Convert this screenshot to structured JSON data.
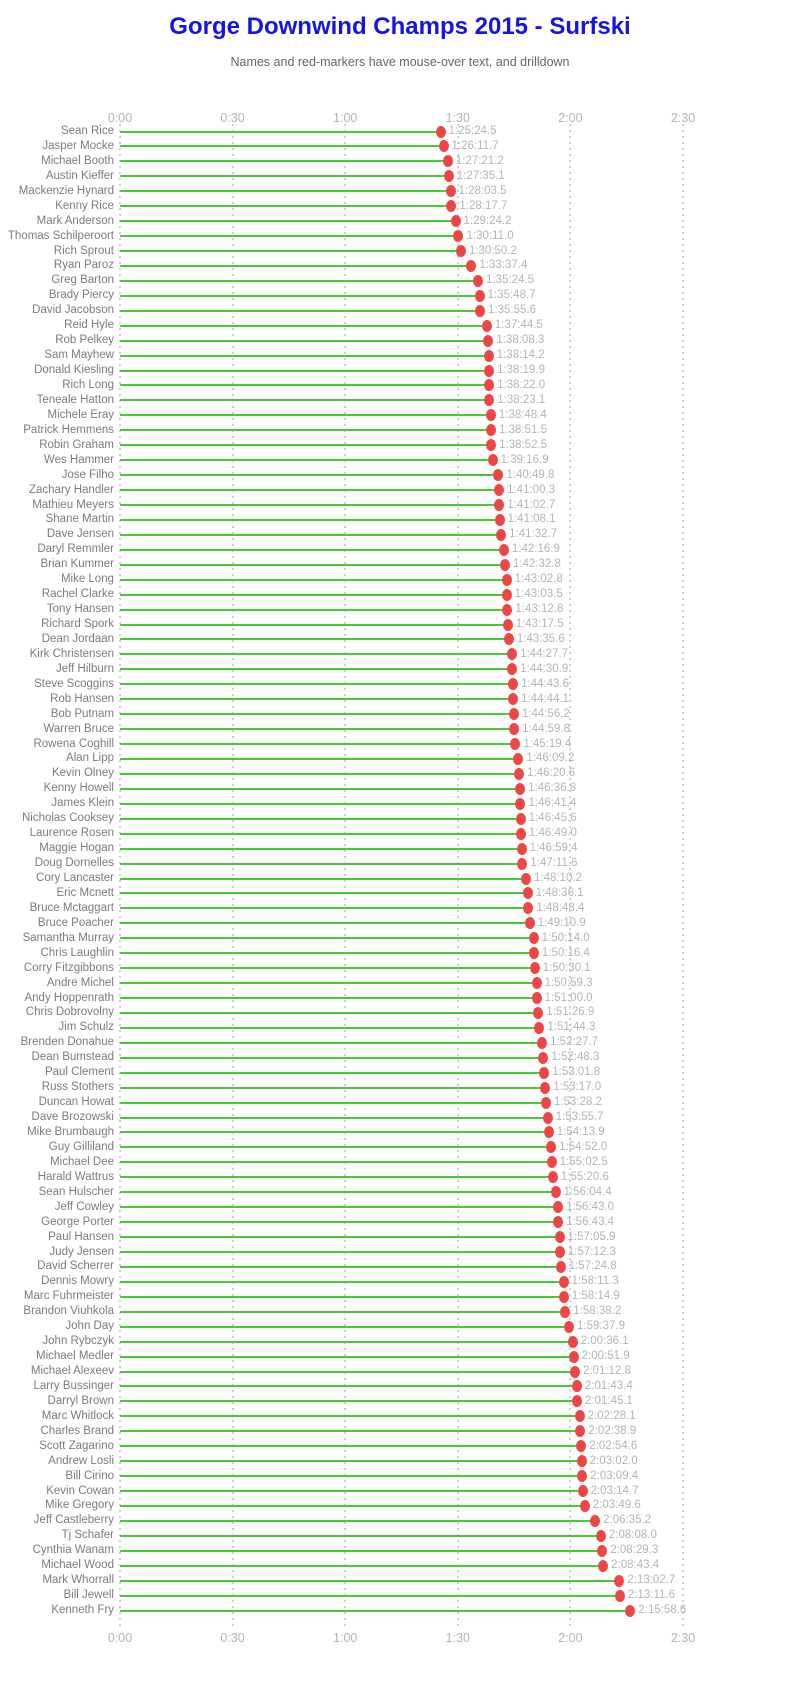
{
  "page": {
    "title": "Gorge Downwind Champs 2015 - Surfski",
    "subtitle": "Names and red-markers have mouse-over text, and drilldown"
  },
  "colors": {
    "title_text": "#1414e8",
    "subtitle_text": "#666666",
    "bar_line": "#4bc836",
    "marker": "#ee4545",
    "name_text": "#7b7b7b",
    "value_text": "#b4b4b4",
    "axis_text": "#b3b3b3",
    "gridline": "#cfcfcf"
  },
  "chart_data": {
    "type": "bar",
    "subtype": "horizontal-lollipop",
    "title": "Gorge Downwind Champs 2015 - Surfski",
    "subtitle": "Names and red-markers have mouse-over text, and drilldown",
    "xlabel": "",
    "ylabel": "",
    "legend": "none",
    "x_axis": {
      "ticks": [
        "0:00",
        "0:30",
        "1:00",
        "1:30",
        "2:00",
        "2:30"
      ],
      "range_minutes": [
        0,
        150
      ],
      "shown_on": "top and bottom",
      "gridlines": "dotted vertical"
    },
    "rows": [
      {
        "name": "Sean Rice",
        "time": "1:25:24.5"
      },
      {
        "name": "Jasper Mocke",
        "time": "1:26:11.7"
      },
      {
        "name": "Michael Booth",
        "time": "1:27:21.2"
      },
      {
        "name": "Austin Kieffer",
        "time": "1:27:35.1"
      },
      {
        "name": "Mackenzie Hynard",
        "time": "1:28:03.5"
      },
      {
        "name": "Kenny Rice",
        "time": "1:28:17.7"
      },
      {
        "name": "Mark Anderson",
        "time": "1:29:24.2"
      },
      {
        "name": "Thomas Schilperoort",
        "time": "1:30:11.0"
      },
      {
        "name": "Rich Sprout",
        "time": "1:30:50.2"
      },
      {
        "name": "Ryan Paroz",
        "time": "1:33:37.4"
      },
      {
        "name": "Greg Barton",
        "time": "1:35:24.5"
      },
      {
        "name": "Brady Piercy",
        "time": "1:35:48.7"
      },
      {
        "name": "David Jacobson",
        "time": "1:35:55.6"
      },
      {
        "name": "Reid Hyle",
        "time": "1:37:44.5"
      },
      {
        "name": "Rob Pelkey",
        "time": "1:38:08.3"
      },
      {
        "name": "Sam Mayhew",
        "time": "1:38:14.2"
      },
      {
        "name": "Donald Kiesling",
        "time": "1:38:19.9"
      },
      {
        "name": "Rich Long",
        "time": "1:38:22.0"
      },
      {
        "name": "Teneale Hatton",
        "time": "1:38:23.1"
      },
      {
        "name": "Michele Eray",
        "time": "1:38:48.4"
      },
      {
        "name": "Patrick Hemmens",
        "time": "1:38:51.5"
      },
      {
        "name": "Robin Graham",
        "time": "1:38:52.5"
      },
      {
        "name": "Wes Hammer",
        "time": "1:39:16.9"
      },
      {
        "name": "Jose Filho",
        "time": "1:40:49.8"
      },
      {
        "name": "Zachary Handler",
        "time": "1:41:00.3"
      },
      {
        "name": "Mathieu Meyers",
        "time": "1:41:02.7"
      },
      {
        "name": "Shane Martin",
        "time": "1:41:08.1"
      },
      {
        "name": "Dave Jensen",
        "time": "1:41:32.7"
      },
      {
        "name": "Daryl Remmler",
        "time": "1:42:16.9"
      },
      {
        "name": "Brian Kummer",
        "time": "1:42:32.8"
      },
      {
        "name": "Mike Long",
        "time": "1:43:02.8"
      },
      {
        "name": "Rachel Clarke",
        "time": "1:43:03.5"
      },
      {
        "name": "Tony Hansen",
        "time": "1:43:12.8"
      },
      {
        "name": "Richard Spork",
        "time": "1:43:17.5"
      },
      {
        "name": "Dean Jordaan",
        "time": "1:43:35.6"
      },
      {
        "name": "Kirk Christensen",
        "time": "1:44:27.7"
      },
      {
        "name": "Jeff Hilburn",
        "time": "1:44:30.9"
      },
      {
        "name": "Steve Scoggins",
        "time": "1:44:43.6"
      },
      {
        "name": "Rob Hansen",
        "time": "1:44:44.1"
      },
      {
        "name": "Bob Putnam",
        "time": "1:44:56.2"
      },
      {
        "name": "Warren Bruce",
        "time": "1:44:59.8"
      },
      {
        "name": "Rowena Coghill",
        "time": "1:45:19.4"
      },
      {
        "name": "Alan Lipp",
        "time": "1:46:09.2"
      },
      {
        "name": "Kevin Olney",
        "time": "1:46:20.6"
      },
      {
        "name": "Kenny Howell",
        "time": "1:46:36.8"
      },
      {
        "name": "James Klein",
        "time": "1:46:41.4"
      },
      {
        "name": "Nicholas Cooksey",
        "time": "1:46:45.6"
      },
      {
        "name": "Laurence Rosen",
        "time": "1:46:49.0"
      },
      {
        "name": "Maggie Hogan",
        "time": "1:46:59.4"
      },
      {
        "name": "Doug Dornelles",
        "time": "1:47:11.6"
      },
      {
        "name": "Cory Lancaster",
        "time": "1:48:10.2"
      },
      {
        "name": "Eric Mcnett",
        "time": "1:48:36.1"
      },
      {
        "name": "Bruce Mctaggart",
        "time": "1:48:48.4"
      },
      {
        "name": "Bruce Poacher",
        "time": "1:49:10.9"
      },
      {
        "name": "Samantha Murray",
        "time": "1:50:14.0"
      },
      {
        "name": "Chris Laughlin",
        "time": "1:50:16.4"
      },
      {
        "name": "Corry Fitzgibbons",
        "time": "1:50:30.1"
      },
      {
        "name": "Andre Michel",
        "time": "1:50:59.3"
      },
      {
        "name": "Andy Hoppenrath",
        "time": "1:51:00.0"
      },
      {
        "name": "Chris Dobrovolny",
        "time": "1:51:26.9"
      },
      {
        "name": "Jim Schulz",
        "time": "1:51:44.3"
      },
      {
        "name": "Brenden Donahue",
        "time": "1:52:27.7"
      },
      {
        "name": "Dean Bumstead",
        "time": "1:52:48.3"
      },
      {
        "name": "Paul Clement",
        "time": "1:53:01.8"
      },
      {
        "name": "Russ Stothers",
        "time": "1:53:17.0"
      },
      {
        "name": "Duncan Howat",
        "time": "1:53:28.2"
      },
      {
        "name": "Dave Brozowski",
        "time": "1:53:55.7"
      },
      {
        "name": "Mike Brumbaugh",
        "time": "1:54:13.9"
      },
      {
        "name": "Guy Gilliland",
        "time": "1:54:52.0"
      },
      {
        "name": "Michael Dee",
        "time": "1:55:02.5"
      },
      {
        "name": "Harald Wattrus",
        "time": "1:55:20.6"
      },
      {
        "name": "Sean Hulscher",
        "time": "1:56:04.4"
      },
      {
        "name": "Jeff Cowley",
        "time": "1:56:43.0"
      },
      {
        "name": "George Porter",
        "time": "1:56:43.4"
      },
      {
        "name": "Paul Hansen",
        "time": "1:57:05.9"
      },
      {
        "name": "Judy Jensen",
        "time": "1:57:12.3"
      },
      {
        "name": "David Scherrer",
        "time": "1:57:24.8"
      },
      {
        "name": "Dennis Mowry",
        "time": "1:58:11.3"
      },
      {
        "name": "Marc Fuhrmeister",
        "time": "1:58:14.9"
      },
      {
        "name": "Brandon Viuhkola",
        "time": "1:58:38.2"
      },
      {
        "name": "John Day",
        "time": "1:59:37.9"
      },
      {
        "name": "John Rybczyk",
        "time": "2:00:36.1"
      },
      {
        "name": "Michael Medler",
        "time": "2:00:51.9"
      },
      {
        "name": "Michael Alexeev",
        "time": "2:01:12.8"
      },
      {
        "name": "Larry Bussinger",
        "time": "2:01:43.4"
      },
      {
        "name": "Darryl Brown",
        "time": "2:01:45.1"
      },
      {
        "name": "Marc Whitlock",
        "time": "2:02:28.1"
      },
      {
        "name": "Charles Brand",
        "time": "2:02:38.9"
      },
      {
        "name": "Scott Zagarino",
        "time": "2:02:54.6"
      },
      {
        "name": "Andrew Losli",
        "time": "2:03:02.0"
      },
      {
        "name": "Bill Cirino",
        "time": "2:03:09.4"
      },
      {
        "name": "Kevin Cowan",
        "time": "2:03:14.7"
      },
      {
        "name": "Mike Gregory",
        "time": "2:03:49.6"
      },
      {
        "name": "Jeff Castleberry",
        "time": "2:06:35.2"
      },
      {
        "name": "Tj Schafer",
        "time": "2:08:08.0"
      },
      {
        "name": "Cynthia Wanam",
        "time": "2:08:29.3"
      },
      {
        "name": "Michael Wood",
        "time": "2:08:43.4"
      },
      {
        "name": "Mark Whorrall",
        "time": "2:13:02.7"
      },
      {
        "name": "Bill Jewell",
        "time": "2:13:11.6"
      },
      {
        "name": "Kenneth Fry",
        "time": "2:15:58.6"
      }
    ]
  }
}
